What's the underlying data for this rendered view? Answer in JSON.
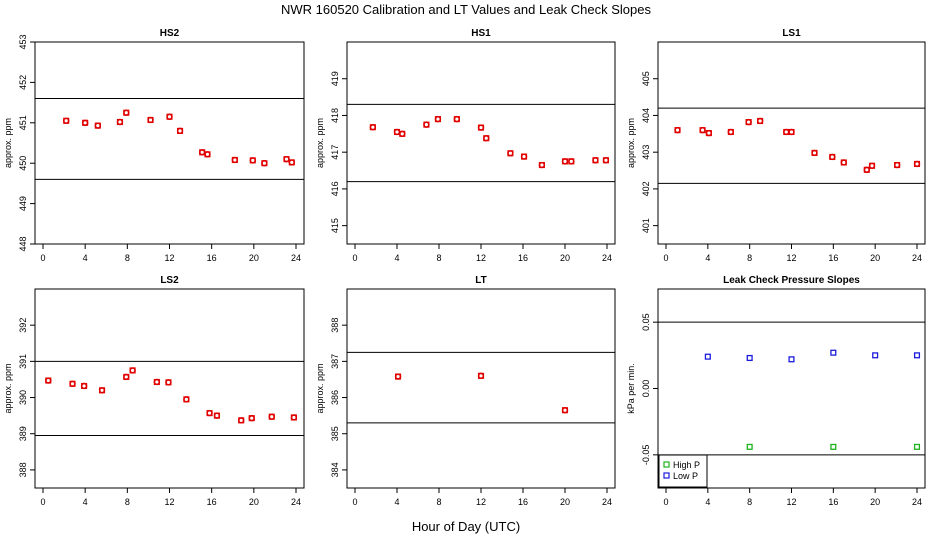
{
  "figure": {
    "title": "NWR  160520  Calibration and LT Values and Leak Check Slopes",
    "xlabel": "Hour of Day (UTC)"
  },
  "colors": {
    "cal_points": "#e00000",
    "high_p": "#1db31d",
    "low_p": "#1a1adc",
    "lines": "#000000"
  },
  "chart_data": [
    {
      "type": "scatter",
      "title": "HS2",
      "ylabel": "approx. ppm",
      "xlim": [
        0,
        24
      ],
      "ylim": [
        448,
        453
      ],
      "xticks": [
        0,
        4,
        8,
        12,
        16,
        20,
        24
      ],
      "xtick_labels": [
        "0",
        "4",
        "8",
        "12",
        "16",
        "20",
        "24"
      ],
      "yticks": [
        448,
        449,
        450,
        451,
        452,
        453
      ],
      "ytick_labels": [
        "448",
        "449",
        "450",
        "451",
        "452",
        "453"
      ],
      "hlines": [
        451.6,
        449.6
      ],
      "points": [
        [
          2.2,
          451.05
        ],
        [
          4.0,
          451.0
        ],
        [
          5.2,
          450.93
        ],
        [
          7.3,
          451.02
        ],
        [
          7.9,
          451.25
        ],
        [
          10.2,
          451.07
        ],
        [
          12.0,
          451.15
        ],
        [
          13.0,
          450.8
        ],
        [
          15.1,
          450.27
        ],
        [
          15.6,
          450.22
        ],
        [
          18.2,
          450.08
        ],
        [
          19.9,
          450.07
        ],
        [
          21.0,
          450.0
        ],
        [
          23.1,
          450.1
        ],
        [
          23.6,
          450.02
        ]
      ]
    },
    {
      "type": "scatter",
      "title": "HS1",
      "ylabel": "approx. ppm",
      "xlim": [
        0,
        24
      ],
      "ylim": [
        414.5,
        420
      ],
      "xticks": [
        0,
        4,
        8,
        12,
        16,
        20,
        24
      ],
      "xtick_labels": [
        "0",
        "4",
        "8",
        "12",
        "16",
        "20",
        "24"
      ],
      "yticks": [
        415,
        416,
        417,
        418,
        419
      ],
      "ytick_labels": [
        "415",
        "416",
        "417",
        "418",
        "419"
      ],
      "hlines": [
        418.3,
        416.2
      ],
      "points": [
        [
          1.7,
          417.68
        ],
        [
          4.0,
          417.55
        ],
        [
          4.5,
          417.5
        ],
        [
          6.8,
          417.75
        ],
        [
          7.9,
          417.9
        ],
        [
          9.7,
          417.9
        ],
        [
          12.0,
          417.67
        ],
        [
          12.5,
          417.38
        ],
        [
          14.8,
          416.97
        ],
        [
          16.1,
          416.88
        ],
        [
          17.8,
          416.65
        ],
        [
          20.0,
          416.75
        ],
        [
          20.6,
          416.75
        ],
        [
          22.9,
          416.78
        ],
        [
          23.9,
          416.78
        ]
      ]
    },
    {
      "type": "scatter",
      "title": "LS1",
      "ylabel": "approx. ppm",
      "xlim": [
        0,
        24
      ],
      "ylim": [
        400.5,
        406
      ],
      "xticks": [
        0,
        4,
        8,
        12,
        16,
        20,
        24
      ],
      "xtick_labels": [
        "0",
        "4",
        "8",
        "12",
        "16",
        "20",
        "24"
      ],
      "yticks": [
        401,
        402,
        403,
        404,
        405
      ],
      "ytick_labels": [
        "401",
        "402",
        "403",
        "404",
        "405"
      ],
      "hlines": [
        404.2,
        402.15
      ],
      "points": [
        [
          1.1,
          403.6
        ],
        [
          3.5,
          403.6
        ],
        [
          4.1,
          403.52
        ],
        [
          6.2,
          403.55
        ],
        [
          7.9,
          403.82
        ],
        [
          9.0,
          403.85
        ],
        [
          11.5,
          403.55
        ],
        [
          12.0,
          403.55
        ],
        [
          14.2,
          402.98
        ],
        [
          15.9,
          402.87
        ],
        [
          17.0,
          402.72
        ],
        [
          19.2,
          402.52
        ],
        [
          19.7,
          402.63
        ],
        [
          22.1,
          402.65
        ],
        [
          24.0,
          402.68
        ]
      ]
    },
    {
      "type": "scatter",
      "title": "LS2",
      "ylabel": "approx. ppm",
      "xlim": [
        0,
        24
      ],
      "ylim": [
        387.5,
        393
      ],
      "xticks": [
        0,
        4,
        8,
        12,
        16,
        20,
        24
      ],
      "xtick_labels": [
        "0",
        "4",
        "8",
        "12",
        "16",
        "20",
        "24"
      ],
      "yticks": [
        388,
        389,
        390,
        391,
        392
      ],
      "ytick_labels": [
        "388",
        "389",
        "390",
        "391",
        "392"
      ],
      "hlines": [
        391.0,
        388.95
      ],
      "points": [
        [
          0.5,
          390.47
        ],
        [
          2.8,
          390.38
        ],
        [
          3.9,
          390.32
        ],
        [
          5.6,
          390.2
        ],
        [
          7.9,
          390.57
        ],
        [
          8.5,
          390.75
        ],
        [
          10.8,
          390.43
        ],
        [
          11.9,
          390.42
        ],
        [
          13.6,
          389.95
        ],
        [
          15.8,
          389.57
        ],
        [
          16.5,
          389.5
        ],
        [
          18.8,
          389.37
        ],
        [
          19.8,
          389.43
        ],
        [
          21.7,
          389.47
        ],
        [
          23.8,
          389.45
        ]
      ]
    },
    {
      "type": "scatter",
      "title": "LT",
      "ylabel": "approx. ppm",
      "xlim": [
        0,
        24
      ],
      "ylim": [
        383.5,
        389
      ],
      "xticks": [
        0,
        4,
        8,
        12,
        16,
        20,
        24
      ],
      "xtick_labels": [
        "0",
        "4",
        "8",
        "12",
        "16",
        "20",
        "24"
      ],
      "yticks": [
        384,
        385,
        386,
        387,
        388
      ],
      "ytick_labels": [
        "384",
        "385",
        "386",
        "387",
        "388"
      ],
      "hlines": [
        387.25,
        385.3
      ],
      "points": [
        [
          4.1,
          386.58
        ],
        [
          12.0,
          386.6
        ],
        [
          20.0,
          385.65
        ]
      ]
    },
    {
      "type": "scatter",
      "title": "Leak Check Pressure Slopes",
      "ylabel": "kPa per min.",
      "xlim": [
        0,
        24
      ],
      "ylim": [
        -0.075,
        0.075
      ],
      "xticks": [
        0,
        4,
        8,
        12,
        16,
        20,
        24
      ],
      "xtick_labels": [
        "0",
        "4",
        "8",
        "12",
        "16",
        "20",
        "24"
      ],
      "yticks": [
        -0.05,
        0.0,
        0.05
      ],
      "ytick_labels": [
        "-0.05",
        "0.00",
        "0.05"
      ],
      "hlines": [
        0.05,
        -0.05
      ],
      "legend": {
        "placement": "bottom-left",
        "entries": [
          "High P",
          "Low P"
        ]
      },
      "series": [
        {
          "name": "High P",
          "points": [
            [
              8.0,
              -0.044
            ],
            [
              16.0,
              -0.044
            ],
            [
              24.0,
              -0.044
            ]
          ]
        },
        {
          "name": "Low P",
          "points": [
            [
              4.0,
              0.024
            ],
            [
              8.0,
              0.023
            ],
            [
              12.0,
              0.022
            ],
            [
              16.0,
              0.027
            ],
            [
              20.0,
              0.025
            ],
            [
              24.0,
              0.025
            ]
          ]
        }
      ]
    }
  ]
}
